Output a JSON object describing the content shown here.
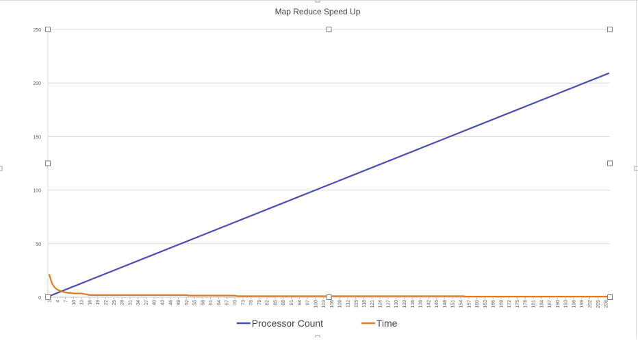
{
  "chart_data": {
    "type": "line",
    "title": "Map Reduce Speed Up",
    "xlabel": "",
    "ylabel": "",
    "ylim": [
      0,
      250
    ],
    "yticks": [
      0,
      50,
      100,
      150,
      200,
      250
    ],
    "x_range": [
      1,
      209
    ],
    "x_tick_start": 1,
    "x_tick_step": 3,
    "grid": "horizontal",
    "legend_position": "bottom",
    "selected": true,
    "series": [
      {
        "name": "Processor Count",
        "color": "#4a4ab8",
        "rule": "y = x",
        "x_from": 1,
        "x_to": 209
      },
      {
        "name": "Time",
        "color": "#e07b24",
        "points": [
          [
            1,
            21
          ],
          [
            2,
            13
          ],
          [
            3,
            9
          ],
          [
            4,
            7
          ],
          [
            5,
            6
          ],
          [
            6,
            5
          ],
          [
            7,
            4.5
          ],
          [
            8,
            4
          ],
          [
            9,
            4
          ],
          [
            10,
            3.5
          ],
          [
            13,
            3.5
          ],
          [
            14,
            3
          ],
          [
            15,
            2.5
          ],
          [
            16,
            2
          ],
          [
            52,
            2
          ],
          [
            53,
            1.5
          ],
          [
            70,
            1.5
          ],
          [
            71,
            1
          ],
          [
            155,
            1
          ],
          [
            156,
            0.6
          ],
          [
            209,
            0.6
          ]
        ]
      }
    ]
  }
}
